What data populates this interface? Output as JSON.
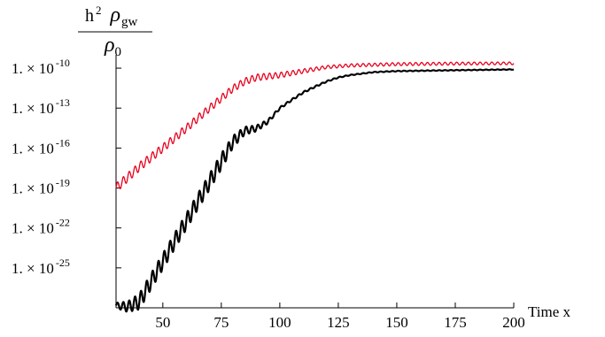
{
  "chart_data": {
    "type": "line",
    "title": "",
    "ylabel": {
      "numerator_prefix": "h",
      "numerator_exp": "2",
      "numerator_symbol": "ρ",
      "numerator_sub": "gw",
      "denominator_symbol": "ρ",
      "denominator_sub": "0"
    },
    "xlabel": "Time x",
    "x_scale": "linear",
    "y_scale": "log",
    "xlim": [
      30,
      200
    ],
    "ylim": [
      1e-28,
      1e-09
    ],
    "grid": false,
    "legend": "none",
    "x_ticks": [
      {
        "value": 50,
        "label": "50"
      },
      {
        "value": 75,
        "label": "75"
      },
      {
        "value": 100,
        "label": "100"
      },
      {
        "value": 125,
        "label": "125"
      },
      {
        "value": 150,
        "label": "150"
      },
      {
        "value": 175,
        "label": "175"
      },
      {
        "value": 200,
        "label": "200"
      }
    ],
    "y_ticks": [
      {
        "value": 1e-10,
        "mantissa": "1.",
        "exponent": "-10"
      },
      {
        "value": 1e-13,
        "mantissa": "1.",
        "exponent": "-13"
      },
      {
        "value": 1e-16,
        "mantissa": "1.",
        "exponent": "-16"
      },
      {
        "value": 1e-19,
        "mantissa": "1.",
        "exponent": "-19"
      },
      {
        "value": 1e-22,
        "mantissa": "1.",
        "exponent": "-22"
      },
      {
        "value": 1e-25,
        "mantissa": "1.",
        "exponent": "-25"
      }
    ],
    "series": [
      {
        "color": "#e8001c",
        "stroke_width": 1.3,
        "oscillation": {
          "period": 2.5,
          "amp_log10": [
            [
              30,
              0.35
            ],
            [
              90,
              0.25
            ],
            [
              120,
              0.12
            ],
            [
              200,
              0.1
            ]
          ]
        },
        "points": [
          [
            30,
            1e-19
          ],
          [
            40,
            4e-18
          ],
          [
            50,
            1e-16
          ],
          [
            60,
            3e-15
          ],
          [
            70,
            1e-13
          ],
          [
            80,
            3e-12
          ],
          [
            85,
            1e-11
          ],
          [
            90,
            2e-11
          ],
          [
            100,
            3e-11
          ],
          [
            110,
            6e-11
          ],
          [
            120,
            1.2e-10
          ],
          [
            130,
            1.6e-10
          ],
          [
            150,
            2e-10
          ],
          [
            175,
            2.2e-10
          ],
          [
            200,
            2.3e-10
          ]
        ]
      },
      {
        "color": "#000000",
        "stroke_width": 2.2,
        "oscillation": {
          "period": 2.5,
          "amp_log10": [
            [
              30,
              0.2
            ],
            [
              40,
              0.6
            ],
            [
              75,
              0.6
            ],
            [
              85,
              0.3
            ],
            [
              100,
              0.08
            ],
            [
              130,
              0.03
            ],
            [
              200,
              0.02
            ]
          ]
        },
        "points": [
          [
            30,
            1.5e-28
          ],
          [
            35,
            1.2e-28
          ],
          [
            40,
            3e-28
          ],
          [
            45,
            1e-26
          ],
          [
            50,
            3e-25
          ],
          [
            55,
            1e-23
          ],
          [
            60,
            3e-22
          ],
          [
            65,
            1e-20
          ],
          [
            70,
            3e-19
          ],
          [
            75,
            1e-17
          ],
          [
            80,
            3e-16
          ],
          [
            85,
            2e-15
          ],
          [
            90,
            3e-15
          ],
          [
            95,
            1e-14
          ],
          [
            100,
            1e-13
          ],
          [
            105,
            4e-13
          ],
          [
            110,
            1.5e-12
          ],
          [
            115,
            4e-12
          ],
          [
            120,
            1e-11
          ],
          [
            125,
            2e-11
          ],
          [
            130,
            3e-11
          ],
          [
            140,
            5e-11
          ],
          [
            150,
            6e-11
          ],
          [
            175,
            7e-11
          ],
          [
            200,
            8e-11
          ]
        ]
      }
    ]
  }
}
